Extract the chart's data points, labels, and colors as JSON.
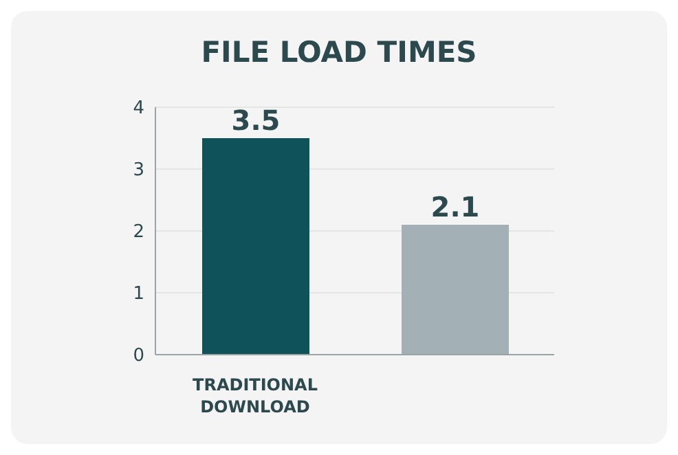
{
  "chart_data": {
    "type": "bar",
    "title": "FILE LOAD TIMES",
    "categories": [
      "TRADITIONAL DOWNLOAD",
      null
    ],
    "values": [
      3.5,
      2.1
    ],
    "colors": [
      "#0f525a",
      "#a3b1b6"
    ],
    "ylim": [
      0,
      4
    ],
    "yticks": [
      0,
      1,
      2,
      3,
      4
    ],
    "grid": "y",
    "data_labels": true
  }
}
